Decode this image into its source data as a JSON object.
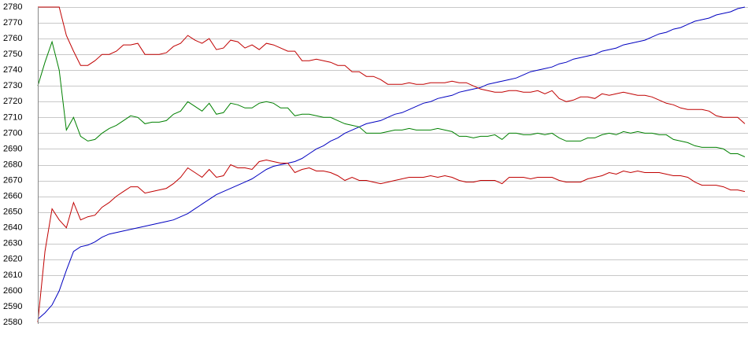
{
  "chart_data": {
    "type": "line",
    "ylim": [
      2580,
      2780
    ],
    "yticks": [
      2580,
      2590,
      2600,
      2610,
      2620,
      2630,
      2640,
      2650,
      2660,
      2670,
      2680,
      2690,
      2700,
      2710,
      2720,
      2730,
      2740,
      2750,
      2760,
      2770,
      2780
    ],
    "grid": true,
    "series": [
      {
        "color": "#0000c0",
        "values": [
          2582,
          2586,
          2591,
          2600,
          2613,
          2625,
          2628,
          2629,
          2631,
          2634,
          2636,
          2637,
          2638,
          2639,
          2640,
          2641,
          2642,
          2643,
          2644,
          2645,
          2647,
          2649,
          2652,
          2655,
          2658,
          2661,
          2663,
          2665,
          2667,
          2669,
          2671,
          2674,
          2677,
          2679,
          2680,
          2681,
          2682,
          2684,
          2687,
          2690,
          2692,
          2695,
          2697,
          2700,
          2702,
          2704,
          2706,
          2707,
          2708,
          2710,
          2712,
          2713,
          2715,
          2717,
          2719,
          2720,
          2722,
          2723,
          2724,
          2726,
          2727,
          2728,
          2729,
          2731,
          2732,
          2733,
          2734,
          2735,
          2737,
          2739,
          2740,
          2741,
          2742,
          2744,
          2745,
          2747,
          2748,
          2749,
          2750,
          2752,
          2753,
          2754,
          2756,
          2757,
          2758,
          2759,
          2761,
          2763,
          2764,
          2766,
          2767,
          2769,
          2771,
          2772,
          2773,
          2775,
          2776,
          2777,
          2779,
          2780
        ]
      },
      {
        "color": "#c00000",
        "values": [
          2780,
          2780,
          2780,
          2780,
          2762,
          2752,
          2743,
          2743,
          2746,
          2750,
          2750,
          2752,
          2756,
          2756,
          2757,
          2750,
          2750,
          2750,
          2751,
          2755,
          2757,
          2762,
          2759,
          2757,
          2760,
          2753,
          2754,
          2759,
          2758,
          2754,
          2756,
          2753,
          2757,
          2756,
          2754,
          2752,
          2752,
          2746,
          2746,
          2747,
          2746,
          2745,
          2743,
          2743,
          2739,
          2739,
          2736,
          2736,
          2734,
          2731,
          2731,
          2731,
          2732,
          2731,
          2731,
          2732,
          2732,
          2732,
          2733,
          2732,
          2732,
          2730,
          2728,
          2727,
          2726,
          2726,
          2727,
          2727,
          2726,
          2726,
          2727,
          2725,
          2727,
          2722,
          2720,
          2721,
          2723,
          2723,
          2722,
          2725,
          2724,
          2725,
          2726,
          2725,
          2724,
          2724,
          2723,
          2721,
          2719,
          2718,
          2716,
          2715,
          2715,
          2715,
          2714,
          2711,
          2710,
          2710,
          2710,
          2706
        ]
      },
      {
        "color": "#008000",
        "values": [
          2730,
          2745,
          2758,
          2740,
          2702,
          2710,
          2698,
          2695,
          2696,
          2700,
          2703,
          2705,
          2708,
          2711,
          2710,
          2706,
          2707,
          2707,
          2708,
          2712,
          2714,
          2720,
          2717,
          2714,
          2719,
          2712,
          2713,
          2719,
          2718,
          2716,
          2716,
          2719,
          2720,
          2719,
          2716,
          2716,
          2711,
          2712,
          2712,
          2711,
          2710,
          2710,
          2708,
          2706,
          2705,
          2704,
          2700,
          2700,
          2700,
          2701,
          2702,
          2702,
          2703,
          2702,
          2702,
          2702,
          2703,
          2702,
          2701,
          2698,
          2698,
          2697,
          2698,
          2698,
          2699,
          2696,
          2700,
          2700,
          2699,
          2699,
          2700,
          2699,
          2700,
          2697,
          2695,
          2695,
          2695,
          2697,
          2697,
          2699,
          2700,
          2699,
          2701,
          2700,
          2701,
          2700,
          2700,
          2699,
          2699,
          2696,
          2695,
          2694,
          2692,
          2691,
          2691,
          2691,
          2690,
          2687,
          2687,
          2685
        ]
      },
      {
        "color": "#c00000",
        "values": [
          2580,
          2625,
          2652,
          2645,
          2640,
          2656,
          2645,
          2647,
          2648,
          2653,
          2656,
          2660,
          2663,
          2666,
          2666,
          2662,
          2663,
          2664,
          2665,
          2668,
          2672,
          2678,
          2675,
          2672,
          2677,
          2672,
          2673,
          2680,
          2678,
          2678,
          2677,
          2682,
          2683,
          2682,
          2681,
          2681,
          2675,
          2677,
          2678,
          2676,
          2676,
          2675,
          2673,
          2670,
          2672,
          2670,
          2670,
          2669,
          2668,
          2669,
          2670,
          2671,
          2672,
          2672,
          2672,
          2673,
          2672,
          2673,
          2672,
          2670,
          2669,
          2669,
          2670,
          2670,
          2670,
          2668,
          2672,
          2672,
          2672,
          2671,
          2672,
          2672,
          2672,
          2670,
          2669,
          2669,
          2669,
          2671,
          2672,
          2673,
          2675,
          2674,
          2676,
          2675,
          2676,
          2675,
          2675,
          2675,
          2674,
          2673,
          2673,
          2672,
          2669,
          2667,
          2667,
          2667,
          2666,
          2664,
          2664,
          2663
        ]
      }
    ]
  }
}
